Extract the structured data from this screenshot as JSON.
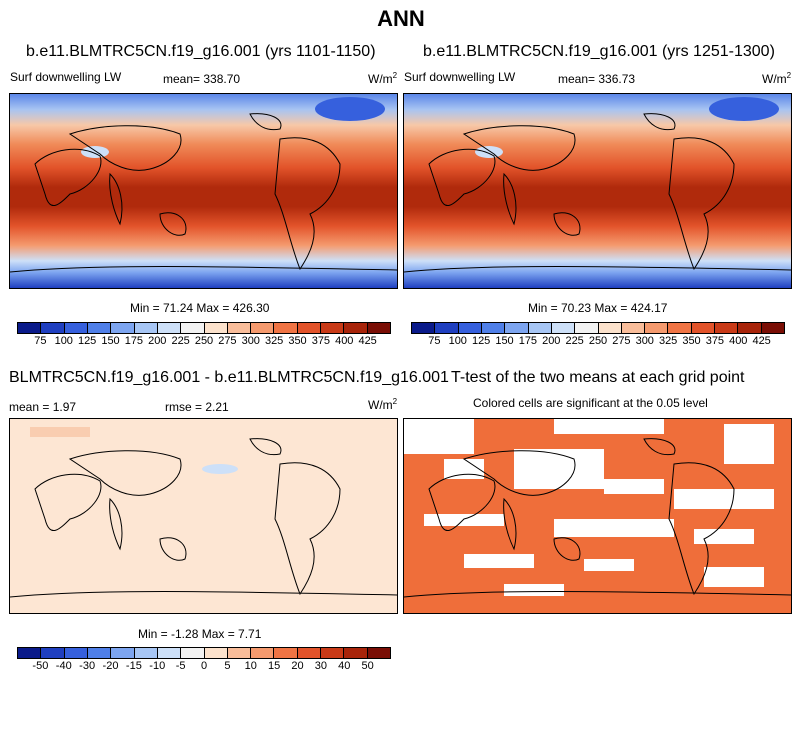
{
  "figure_title": "ANN",
  "panel1": {
    "title": "b.e11.BLMTRC5CN.f19_g16.001 (yrs 1101-1150)",
    "variable": "Surf downwelling LW",
    "mean_label": "mean= 338.70",
    "units": "W/m",
    "units_sup": "2",
    "minmax": "Min =  71.24 Max = 426.30"
  },
  "panel2": {
    "title": "b.e11.BLMTRC5CN.f19_g16.001 (yrs 1251-1300)",
    "variable": "Surf downwelling LW",
    "mean_label": "mean= 336.73",
    "units": "W/m",
    "units_sup": "2",
    "minmax": "Min =  70.23 Max = 424.17"
  },
  "panel3": {
    "title": "BLMTRC5CN.f19_g16.001 - b.e11.BLMTRC5CN.f19_g16.001",
    "mean_label": "mean =   1.97",
    "rmse_label": "rmse =   2.21",
    "units": "W/m",
    "units_sup": "2",
    "minmax": "Min =  -1.28 Max =   7.71"
  },
  "panel4": {
    "title": "T-test of the two means at each grid point",
    "subtitle": "Colored cells are significant at the 0.05 level"
  },
  "colorbar_abs": {
    "colors": [
      "#0a1a8a",
      "#1f3fc0",
      "#3660dd",
      "#4f7fe8",
      "#7da5f0",
      "#a7c6f5",
      "#cde0f8",
      "#f2f2f2",
      "#fce2cc",
      "#f9bd9a",
      "#f59a6e",
      "#f07444",
      "#e2532a",
      "#c93a17",
      "#a8240a",
      "#7a0e05"
    ],
    "ticks": [
      "75",
      "100",
      "125",
      "150",
      "175",
      "200",
      "225",
      "250",
      "275",
      "300",
      "325",
      "350",
      "375",
      "400",
      "425"
    ]
  },
  "colorbar_diff": {
    "colors": [
      "#0a1a8a",
      "#1f3fc0",
      "#3660dd",
      "#4f7fe8",
      "#7da5f0",
      "#a7c6f5",
      "#cde0f8",
      "#f2f2f2",
      "#fce2cc",
      "#f9bd9a",
      "#f59a6e",
      "#f07444",
      "#e2532a",
      "#c93a17",
      "#a8240a",
      "#7a0e05"
    ],
    "ticks": [
      "-50",
      "-40",
      "-30",
      "-20",
      "-15",
      "-10",
      "-5",
      "0",
      "5",
      "10",
      "15",
      "20",
      "30",
      "40",
      "50"
    ]
  }
}
